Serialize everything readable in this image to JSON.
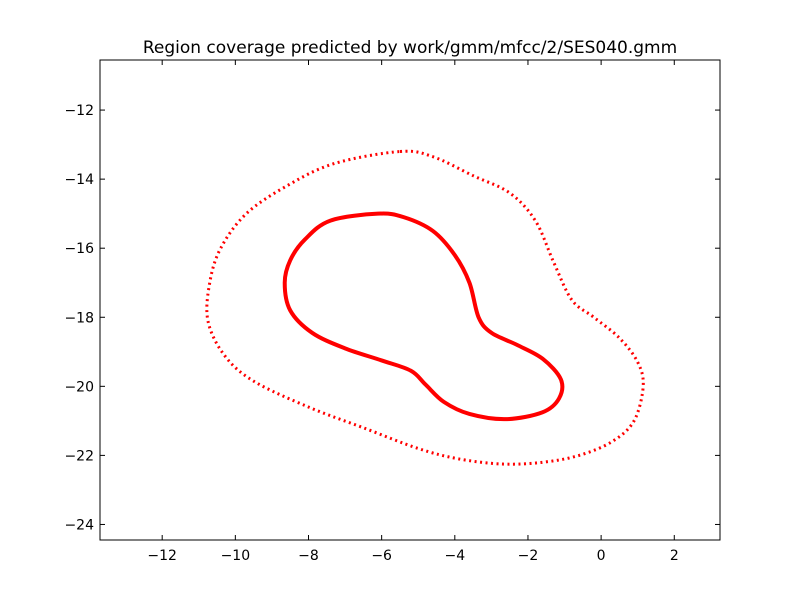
{
  "chart_data": {
    "type": "line",
    "title": "Region coverage predicted by work/gmm/mfcc/2/SES040.gmm",
    "xlabel": "",
    "ylabel": "",
    "xlim": [
      -13.7,
      3.25
    ],
    "ylim": [
      -24.45,
      -10.55
    ],
    "x_ticks": [
      {
        "value": -12,
        "label": "−12"
      },
      {
        "value": -10,
        "label": "−10"
      },
      {
        "value": -8,
        "label": "−8"
      },
      {
        "value": -6,
        "label": "−6"
      },
      {
        "value": -4,
        "label": "−4"
      },
      {
        "value": -2,
        "label": "−2"
      },
      {
        "value": 0,
        "label": "0"
      },
      {
        "value": 2,
        "label": "2"
      }
    ],
    "y_ticks": [
      {
        "value": -12,
        "label": "−12"
      },
      {
        "value": -14,
        "label": "−14"
      },
      {
        "value": -16,
        "label": "−16"
      },
      {
        "value": -18,
        "label": "−18"
      },
      {
        "value": -20,
        "label": "−20"
      },
      {
        "value": -22,
        "label": "−22"
      },
      {
        "value": -24,
        "label": "−24"
      }
    ],
    "grid": false,
    "series": [
      {
        "color": "#ff0000",
        "style": "solid",
        "points": [
          [
            -6.1,
            -15.0
          ],
          [
            -5.4,
            -15.1
          ],
          [
            -4.6,
            -15.5
          ],
          [
            -4.0,
            -16.2
          ],
          [
            -3.6,
            -17.0
          ],
          [
            -3.35,
            -18.0
          ],
          [
            -3.0,
            -18.45
          ],
          [
            -2.3,
            -18.8
          ],
          [
            -1.6,
            -19.2
          ],
          [
            -1.1,
            -19.8
          ],
          [
            -1.15,
            -20.35
          ],
          [
            -1.6,
            -20.75
          ],
          [
            -2.6,
            -20.95
          ],
          [
            -3.6,
            -20.8
          ],
          [
            -4.3,
            -20.45
          ],
          [
            -4.8,
            -19.95
          ],
          [
            -5.2,
            -19.55
          ],
          [
            -6.0,
            -19.25
          ],
          [
            -7.0,
            -18.9
          ],
          [
            -7.9,
            -18.45
          ],
          [
            -8.5,
            -17.8
          ],
          [
            -8.65,
            -17.0
          ],
          [
            -8.5,
            -16.35
          ],
          [
            -8.1,
            -15.75
          ],
          [
            -7.4,
            -15.2
          ]
        ]
      },
      {
        "color": "#ff0000",
        "style": "dotted",
        "points": [
          [
            -5.5,
            -13.2
          ],
          [
            -4.6,
            -13.35
          ],
          [
            -3.5,
            -13.9
          ],
          [
            -2.5,
            -14.4
          ],
          [
            -1.8,
            -15.2
          ],
          [
            -1.3,
            -16.4
          ],
          [
            -0.8,
            -17.5
          ],
          [
            -0.2,
            -18.0
          ],
          [
            0.5,
            -18.6
          ],
          [
            1.0,
            -19.3
          ],
          [
            1.15,
            -20.0
          ],
          [
            0.9,
            -21.0
          ],
          [
            0.3,
            -21.6
          ],
          [
            -0.6,
            -22.0
          ],
          [
            -1.6,
            -22.2
          ],
          [
            -2.7,
            -22.25
          ],
          [
            -3.9,
            -22.1
          ],
          [
            -5.0,
            -21.8
          ],
          [
            -6.5,
            -21.2
          ],
          [
            -8.0,
            -20.6
          ],
          [
            -9.5,
            -19.85
          ],
          [
            -10.3,
            -19.1
          ],
          [
            -10.75,
            -18.1
          ],
          [
            -10.7,
            -17.0
          ],
          [
            -10.4,
            -16.0
          ],
          [
            -9.7,
            -15.0
          ],
          [
            -8.6,
            -14.2
          ],
          [
            -7.3,
            -13.55
          ]
        ]
      }
    ]
  }
}
